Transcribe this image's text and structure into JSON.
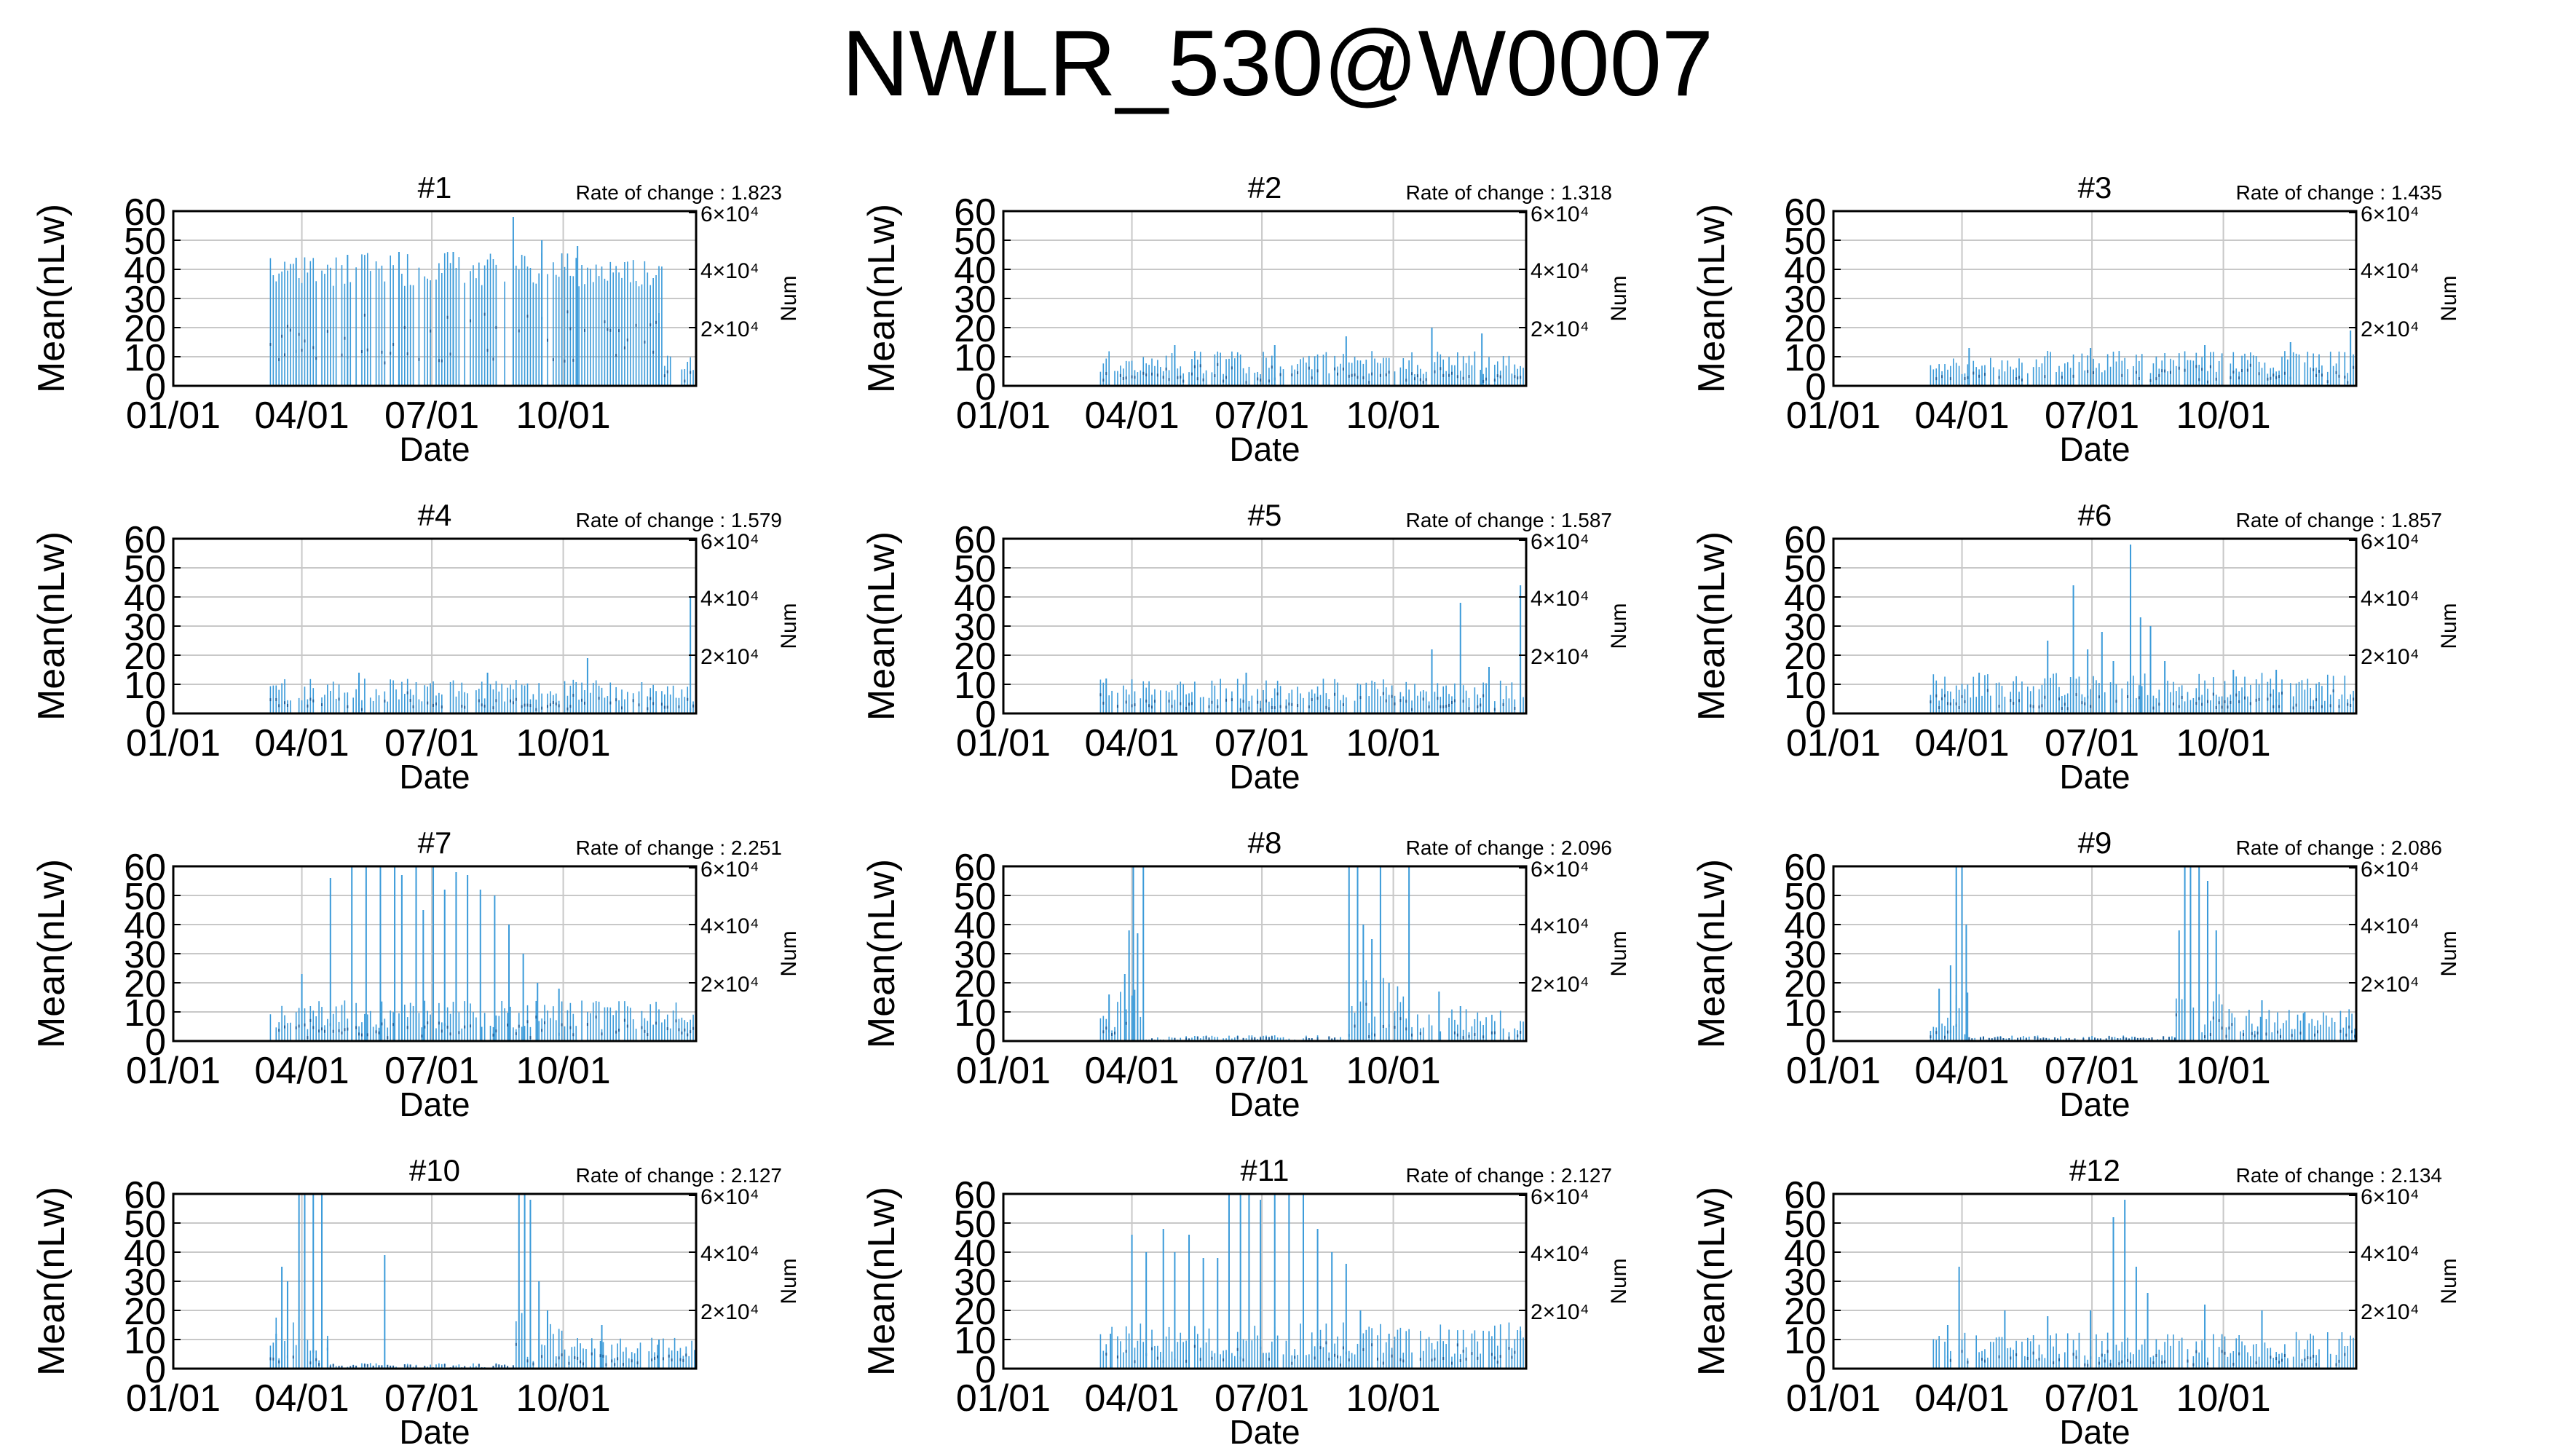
{
  "figure_title": "NWLR_530@W0007",
  "chart_data": [
    {
      "type": "bar",
      "panel_title": "#1",
      "rate_label": "Rate of change : 1.823",
      "xlabel": "Date",
      "ylabel": "Mean(nLw)",
      "y2label": "Num",
      "x_tick_labels": [
        "01/01",
        "04/01",
        "07/01",
        "10/01"
      ],
      "y_ticks": [
        0,
        10,
        20,
        30,
        40,
        50,
        60
      ],
      "y2_ticks": [
        "2×10⁴",
        "4×10⁴",
        "6×10⁴"
      ],
      "ylim": [
        0,
        60
      ],
      "xlim_days": [
        0,
        366
      ],
      "segments": [
        {
          "start": 68,
          "end": 343,
          "base": 40,
          "noise": 6,
          "spikes": [
            [
              86,
              44
            ],
            [
              122,
              45
            ],
            [
              158,
              46
            ],
            [
              196,
              46
            ],
            [
              238,
              58
            ],
            [
              258,
              50
            ],
            [
              283,
              48
            ],
            [
              340,
              25
            ]
          ]
        },
        {
          "start": 344,
          "end": 366,
          "base": 8,
          "noise": 3,
          "spikes": []
        }
      ]
    },
    {
      "type": "bar",
      "panel_title": "#2",
      "rate_label": "Rate of change : 1.318",
      "xlabel": "Date",
      "ylabel": "Mean(nLw)",
      "y2label": "Num",
      "x_tick_labels": [
        "01/01",
        "04/01",
        "07/01",
        "10/01"
      ],
      "y_ticks": [
        0,
        10,
        20,
        30,
        40,
        50,
        60
      ],
      "y2_ticks": [
        "2×10⁴",
        "4×10⁴",
        "6×10⁴"
      ],
      "ylim": [
        0,
        60
      ],
      "xlim_days": [
        0,
        366
      ],
      "segments": [
        {
          "start": 68,
          "end": 366,
          "base": 8,
          "noise": 4,
          "spikes": [
            [
              120,
              14
            ],
            [
              190,
              14
            ],
            [
              240,
              17
            ],
            [
              300,
              20
            ],
            [
              335,
              18
            ]
          ]
        }
      ]
    },
    {
      "type": "bar",
      "panel_title": "#3",
      "rate_label": "Rate of change : 1.435",
      "xlabel": "Date",
      "ylabel": "Mean(nLw)",
      "y2label": "Num",
      "x_tick_labels": [
        "01/01",
        "04/01",
        "07/01",
        "10/01"
      ],
      "y_ticks": [
        0,
        10,
        20,
        30,
        40,
        50,
        60
      ],
      "y2_ticks": [
        "2×10⁴",
        "4×10⁴",
        "6×10⁴"
      ],
      "ylim": [
        0,
        60
      ],
      "xlim_days": [
        0,
        366
      ],
      "segments": [
        {
          "start": 68,
          "end": 366,
          "base": 8,
          "noise": 4,
          "spikes": [
            [
              95,
              13
            ],
            [
              180,
              13
            ],
            [
              260,
              14
            ],
            [
              320,
              15
            ],
            [
              362,
              19
            ]
          ]
        }
      ]
    },
    {
      "type": "bar",
      "panel_title": "#4",
      "rate_label": "Rate of change : 1.579",
      "xlabel": "Date",
      "ylabel": "Mean(nLw)",
      "y2label": "Num",
      "x_tick_labels": [
        "01/01",
        "04/01",
        "07/01",
        "10/01"
      ],
      "y_ticks": [
        0,
        10,
        20,
        30,
        40,
        50,
        60
      ],
      "y2_ticks": [
        "2×10⁴",
        "4×10⁴",
        "6×10⁴"
      ],
      "ylim": [
        0,
        60
      ],
      "xlim_days": [
        0,
        366
      ],
      "segments": [
        {
          "start": 68,
          "end": 366,
          "base": 8,
          "noise": 4,
          "spikes": [
            [
              130,
              14
            ],
            [
              220,
              14
            ],
            [
              290,
              19
            ],
            [
              362,
              40
            ]
          ]
        }
      ]
    },
    {
      "type": "bar",
      "panel_title": "#5",
      "rate_label": "Rate of change : 1.587",
      "xlabel": "Date",
      "ylabel": "Mean(nLw)",
      "y2label": "Num",
      "x_tick_labels": [
        "01/01",
        "04/01",
        "07/01",
        "10/01"
      ],
      "y_ticks": [
        0,
        10,
        20,
        30,
        40,
        50,
        60
      ],
      "y2_ticks": [
        "2×10⁴",
        "4×10⁴",
        "6×10⁴"
      ],
      "ylim": [
        0,
        60
      ],
      "xlim_days": [
        0,
        366
      ],
      "segments": [
        {
          "start": 68,
          "end": 366,
          "base": 8,
          "noise": 4,
          "spikes": [
            [
              72,
              12
            ],
            [
              170,
              14
            ],
            [
              300,
              22
            ],
            [
              320,
              38
            ],
            [
              340,
              16
            ],
            [
              362,
              44
            ]
          ]
        }
      ]
    },
    {
      "type": "bar",
      "panel_title": "#6",
      "rate_label": "Rate of change : 1.857",
      "xlabel": "Date",
      "ylabel": "Mean(nLw)",
      "y2label": "Num",
      "x_tick_labels": [
        "01/01",
        "04/01",
        "07/01",
        "10/01"
      ],
      "y_ticks": [
        0,
        10,
        20,
        30,
        40,
        50,
        60
      ],
      "y2_ticks": [
        "2×10⁴",
        "4×10⁴",
        "6×10⁴"
      ],
      "ylim": [
        0,
        60
      ],
      "xlim_days": [
        0,
        366
      ],
      "segments": [
        {
          "start": 68,
          "end": 366,
          "base": 9,
          "noise": 5,
          "spikes": [
            [
              102,
              14
            ],
            [
              150,
              25
            ],
            [
              168,
              44
            ],
            [
              178,
              22
            ],
            [
              188,
              28
            ],
            [
              196,
              18
            ],
            [
              208,
              58
            ],
            [
              215,
              33
            ],
            [
              222,
              30
            ],
            [
              232,
              18
            ],
            [
              280,
              15
            ],
            [
              310,
              15
            ]
          ]
        }
      ]
    },
    {
      "type": "bar",
      "panel_title": "#7",
      "rate_label": "Rate of change : 2.251",
      "xlabel": "Date",
      "ylabel": "Mean(nLw)",
      "y2label": "Num",
      "x_tick_labels": [
        "01/01",
        "04/01",
        "07/01",
        "10/01"
      ],
      "y_ticks": [
        0,
        10,
        20,
        30,
        40,
        50,
        60
      ],
      "y2_ticks": [
        "2×10⁴",
        "4×10⁴",
        "6×10⁴"
      ],
      "ylim": [
        0,
        60
      ],
      "xlim_days": [
        0,
        366
      ],
      "segments": [
        {
          "start": 68,
          "end": 366,
          "base": 9,
          "noise": 5,
          "spikes": [
            [
              90,
              23
            ],
            [
              110,
              56
            ],
            [
              125,
              60
            ],
            [
              135,
              60
            ],
            [
              145,
              60
            ],
            [
              155,
              60
            ],
            [
              160,
              57
            ],
            [
              170,
              60
            ],
            [
              175,
              45
            ],
            [
              182,
              60
            ],
            [
              190,
              52
            ],
            [
              198,
              58
            ],
            [
              206,
              57
            ],
            [
              215,
              52
            ],
            [
              225,
              50
            ],
            [
              235,
              40
            ],
            [
              245,
              30
            ],
            [
              255,
              20
            ],
            [
              270,
              18
            ]
          ]
        }
      ]
    },
    {
      "type": "bar",
      "panel_title": "#8",
      "rate_label": "Rate of change : 2.096",
      "xlabel": "Date",
      "ylabel": "Mean(nLw)",
      "y2label": "Num",
      "x_tick_labels": [
        "01/01",
        "04/01",
        "07/01",
        "10/01"
      ],
      "y_ticks": [
        0,
        10,
        20,
        30,
        40,
        50,
        60
      ],
      "y2_ticks": [
        "2×10⁴",
        "4×10⁴",
        "6×10⁴"
      ],
      "ylim": [
        0,
        60
      ],
      "xlim_days": [
        0,
        366
      ],
      "segments": [
        {
          "start": 68,
          "end": 80,
          "base": 6,
          "noise": 3,
          "spikes": [
            [
              74,
              16
            ]
          ]
        },
        {
          "start": 80,
          "end": 100,
          "base": 10,
          "noise": 8,
          "spikes": [
            [
              85,
              23
            ],
            [
              88,
              38
            ],
            [
              91,
              60
            ],
            [
              94,
              37
            ],
            [
              98,
              60
            ]
          ]
        },
        {
          "start": 100,
          "end": 240,
          "base": 1,
          "noise": 1,
          "spikes": []
        },
        {
          "start": 240,
          "end": 290,
          "base": 12,
          "noise": 10,
          "spikes": [
            [
              242,
              60
            ],
            [
              248,
              60
            ],
            [
              252,
              40
            ],
            [
              258,
              35
            ],
            [
              264,
              60
            ],
            [
              270,
              20
            ],
            [
              284,
              60
            ]
          ]
        },
        {
          "start": 290,
          "end": 366,
          "base": 7,
          "noise": 4,
          "spikes": [
            [
              305,
              17
            ],
            [
              320,
              12
            ]
          ]
        }
      ]
    },
    {
      "type": "bar",
      "panel_title": "#9",
      "rate_label": "Rate of change : 2.086",
      "xlabel": "Date",
      "ylabel": "Mean(nLw)",
      "y2label": "Num",
      "x_tick_labels": [
        "01/01",
        "04/01",
        "07/01",
        "10/01"
      ],
      "y_ticks": [
        0,
        10,
        20,
        30,
        40,
        50,
        60
      ],
      "y2_ticks": [
        "2×10⁴",
        "4×10⁴",
        "6×10⁴"
      ],
      "ylim": [
        0,
        60
      ],
      "xlim_days": [
        0,
        366
      ],
      "segments": [
        {
          "start": 68,
          "end": 80,
          "base": 6,
          "noise": 3,
          "spikes": [
            [
              74,
              18
            ]
          ]
        },
        {
          "start": 80,
          "end": 95,
          "base": 10,
          "noise": 8,
          "spikes": [
            [
              82,
              26
            ],
            [
              86,
              60
            ],
            [
              90,
              60
            ],
            [
              93,
              40
            ]
          ]
        },
        {
          "start": 95,
          "end": 240,
          "base": 1,
          "noise": 1,
          "spikes": []
        },
        {
          "start": 240,
          "end": 275,
          "base": 12,
          "noise": 10,
          "spikes": [
            [
              242,
              38
            ],
            [
              246,
              60
            ],
            [
              250,
              60
            ],
            [
              256,
              60
            ],
            [
              262,
              55
            ],
            [
              268,
              38
            ]
          ]
        },
        {
          "start": 275,
          "end": 366,
          "base": 7,
          "noise": 4,
          "spikes": [
            [
              300,
              14
            ],
            [
              330,
              10
            ]
          ]
        }
      ]
    },
    {
      "type": "bar",
      "panel_title": "#10",
      "rate_label": "Rate of change : 2.127",
      "xlabel": "Date",
      "ylabel": "Mean(nLw)",
      "y2label": "Num",
      "x_tick_labels": [
        "01/01",
        "04/01",
        "07/01",
        "10/01"
      ],
      "y_ticks": [
        0,
        10,
        20,
        30,
        40,
        50,
        60
      ],
      "y2_ticks": [
        "2×10⁴",
        "4×10⁴",
        "6×10⁴"
      ],
      "ylim": [
        0,
        60
      ],
      "xlim_days": [
        0,
        366
      ],
      "segments": [
        {
          "start": 68,
          "end": 110,
          "base": 10,
          "noise": 8,
          "spikes": [
            [
              72,
              12
            ],
            [
              76,
              35
            ],
            [
              80,
              30
            ],
            [
              88,
              60
            ],
            [
              92,
              60
            ],
            [
              98,
              60
            ],
            [
              104,
              60
            ],
            [
              108,
              10
            ]
          ]
        },
        {
          "start": 110,
          "end": 240,
          "base": 1,
          "noise": 1,
          "spikes": [
            [
              148,
              39
            ]
          ]
        },
        {
          "start": 240,
          "end": 275,
          "base": 12,
          "noise": 10,
          "spikes": [
            [
              242,
              60
            ],
            [
              246,
              60
            ],
            [
              250,
              58
            ],
            [
              256,
              30
            ],
            [
              262,
              20
            ]
          ]
        },
        {
          "start": 275,
          "end": 366,
          "base": 7,
          "noise": 4,
          "spikes": [
            [
              300,
              15
            ],
            [
              340,
              10
            ]
          ]
        }
      ]
    },
    {
      "type": "bar",
      "panel_title": "#11",
      "rate_label": "Rate of change : 2.127",
      "xlabel": "Date",
      "ylabel": "Mean(nLw)",
      "y2label": "Num",
      "x_tick_labels": [
        "01/01",
        "04/01",
        "07/01",
        "10/01"
      ],
      "y_ticks": [
        0,
        10,
        20,
        30,
        40,
        50,
        60
      ],
      "y2_ticks": [
        "2×10⁴",
        "4×10⁴",
        "6×10⁴"
      ],
      "ylim": [
        0,
        60
      ],
      "xlim_days": [
        0,
        366
      ],
      "segments": [
        {
          "start": 68,
          "end": 366,
          "base": 10,
          "noise": 6,
          "spikes": [
            [
              75,
              12
            ],
            [
              90,
              46
            ],
            [
              100,
              40
            ],
            [
              112,
              48
            ],
            [
              120,
              40
            ],
            [
              130,
              46
            ],
            [
              140,
              38
            ],
            [
              150,
              38
            ],
            [
              158,
              60
            ],
            [
              166,
              60
            ],
            [
              172,
              60
            ],
            [
              180,
              58
            ],
            [
              190,
              60
            ],
            [
              200,
              60
            ],
            [
              210,
              60
            ],
            [
              220,
              48
            ],
            [
              230,
              40
            ],
            [
              240,
              36
            ],
            [
              250,
              20
            ],
            [
              270,
              12
            ],
            [
              362,
              13
            ]
          ]
        }
      ]
    },
    {
      "type": "bar",
      "panel_title": "#12",
      "rate_label": "Rate of change : 2.134",
      "xlabel": "Date",
      "ylabel": "Mean(nLw)",
      "y2label": "Num",
      "x_tick_labels": [
        "01/01",
        "04/01",
        "07/01",
        "10/01"
      ],
      "y_ticks": [
        0,
        10,
        20,
        30,
        40,
        50,
        60
      ],
      "y2_ticks": [
        "2×10⁴",
        "4×10⁴",
        "6×10⁴"
      ],
      "ylim": [
        0,
        60
      ],
      "xlim_days": [
        0,
        366
      ],
      "segments": [
        {
          "start": 68,
          "end": 366,
          "base": 8,
          "noise": 5,
          "spikes": [
            [
              80,
              15
            ],
            [
              88,
              35
            ],
            [
              120,
              20
            ],
            [
              150,
              18
            ],
            [
              180,
              20
            ],
            [
              196,
              52
            ],
            [
              204,
              58
            ],
            [
              212,
              35
            ],
            [
              220,
              26
            ],
            [
              260,
              22
            ],
            [
              300,
              20
            ]
          ]
        }
      ]
    }
  ]
}
